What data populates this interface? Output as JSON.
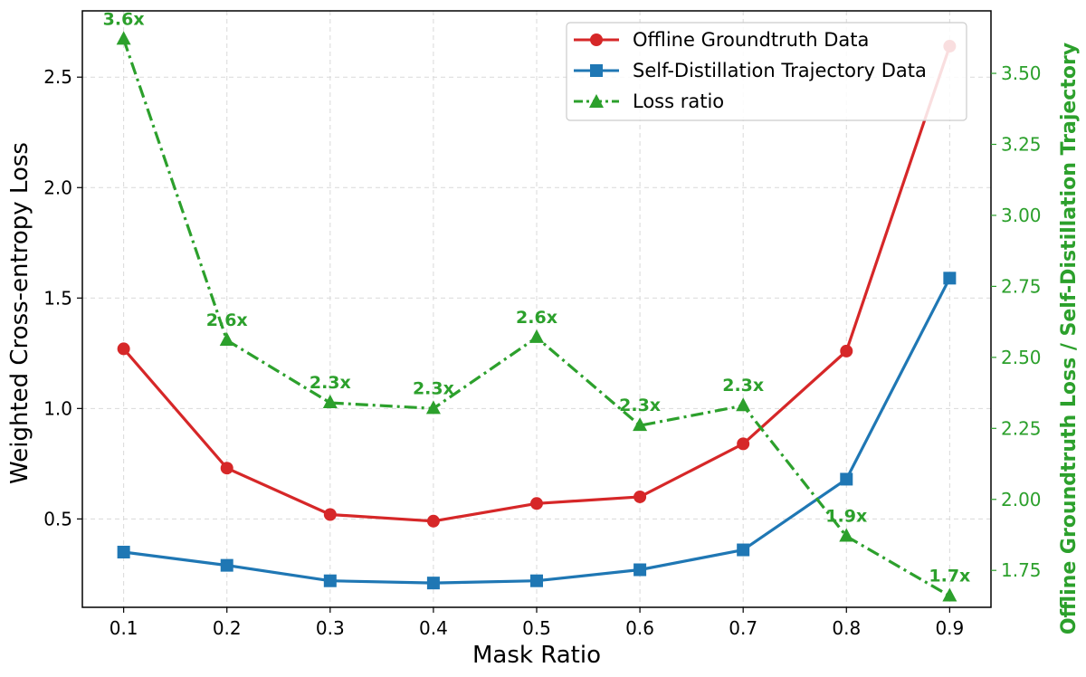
{
  "chart_data": {
    "type": "line",
    "xlabel": "Mask Ratio",
    "ylabel": "Weighted Cross-entropy Loss",
    "ylabel_right": "Offline Groundtruth  Loss / Self-Distillation Trajectory",
    "x": [
      0.1,
      0.2,
      0.3,
      0.4,
      0.5,
      0.6,
      0.7,
      0.8,
      0.9
    ],
    "x_tick_labels": [
      "0.1",
      "0.2",
      "0.3",
      "0.4",
      "0.5",
      "0.6",
      "0.7",
      "0.8",
      "0.9"
    ],
    "xlim": [
      0.06,
      0.94
    ],
    "ylim": [
      0.1,
      2.8
    ],
    "y_ticks": [
      0.5,
      1.0,
      1.5,
      2.0,
      2.5
    ],
    "y_tick_labels": [
      "0.5",
      "1.0",
      "1.5",
      "2.0",
      "2.5"
    ],
    "ylim_right": [
      1.62,
      3.72
    ],
    "y_ticks_right": [
      1.75,
      2.0,
      2.25,
      2.5,
      2.75,
      3.0,
      3.25,
      3.5
    ],
    "y_tick_labels_right": [
      "1.75",
      "2.00",
      "2.25",
      "2.50",
      "2.75",
      "3.00",
      "3.25",
      "3.50"
    ],
    "grid": true,
    "legend_position": "top-right",
    "series": [
      {
        "name": "Offline Groundtruth Data",
        "axis": "left",
        "color": "#d62728",
        "marker": "circle",
        "line_style": "solid",
        "values": [
          1.27,
          0.73,
          0.52,
          0.49,
          0.57,
          0.6,
          0.84,
          1.26,
          2.64
        ]
      },
      {
        "name": "Self-Distillation Trajectory Data",
        "axis": "left",
        "color": "#1f77b4",
        "marker": "square",
        "line_style": "solid",
        "values": [
          0.35,
          0.29,
          0.22,
          0.21,
          0.22,
          0.27,
          0.36,
          0.68,
          1.59
        ]
      },
      {
        "name": "Loss ratio",
        "axis": "right",
        "color": "#2ca02c",
        "marker": "triangle",
        "line_style": "dash-dot",
        "values": [
          3.62,
          2.56,
          2.34,
          2.32,
          2.57,
          2.26,
          2.33,
          1.87,
          1.66
        ],
        "data_labels": [
          "3.6x",
          "2.6x",
          "2.3x",
          "2.3x",
          "2.6x",
          "2.3x",
          "2.3x",
          "1.9x",
          "1.7x"
        ]
      }
    ]
  }
}
